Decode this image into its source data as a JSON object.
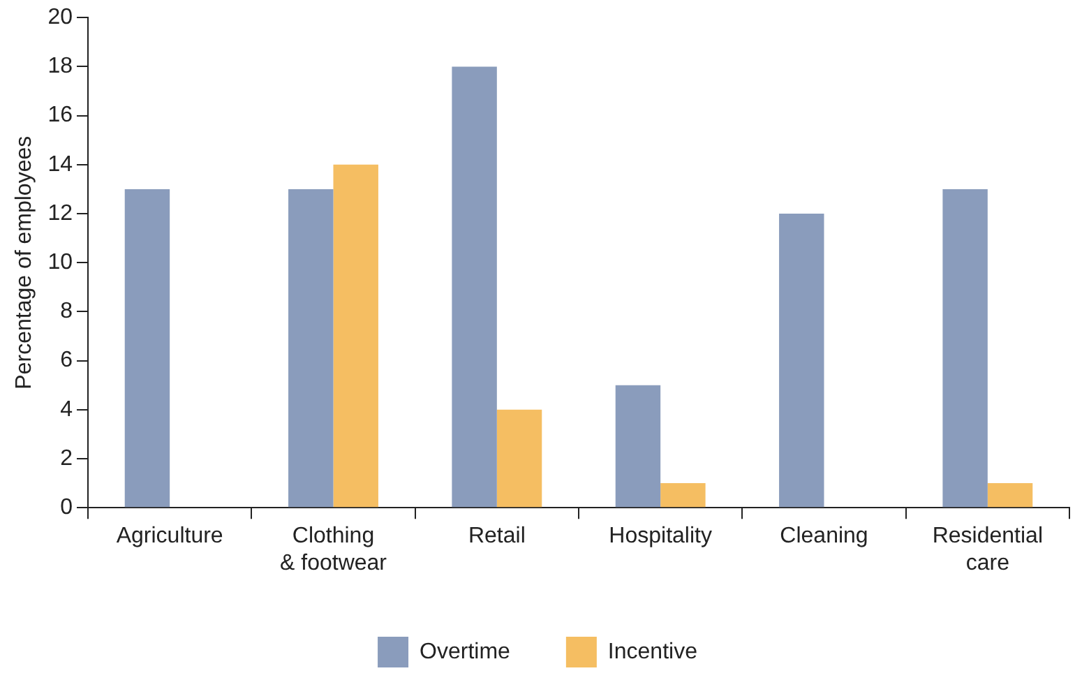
{
  "chart_data": {
    "type": "bar",
    "ylabel": "Percentage of employees",
    "categories": [
      "Agriculture",
      "Clothing & footwear",
      "Retail",
      "Hospitality",
      "Cleaning",
      "Residential care"
    ],
    "series": [
      {
        "name": "Overtime",
        "color": "#8a9cbc",
        "values": [
          13,
          13,
          18,
          5,
          12,
          13
        ]
      },
      {
        "name": "Incentive",
        "color": "#f5be62",
        "values": [
          null,
          14,
          4,
          1,
          null,
          1
        ]
      }
    ],
    "ylim": [
      0,
      20
    ],
    "yticks": [
      0,
      2,
      4,
      6,
      8,
      10,
      12,
      14,
      16,
      18,
      20
    ],
    "grid": false,
    "legend": "bottom"
  }
}
